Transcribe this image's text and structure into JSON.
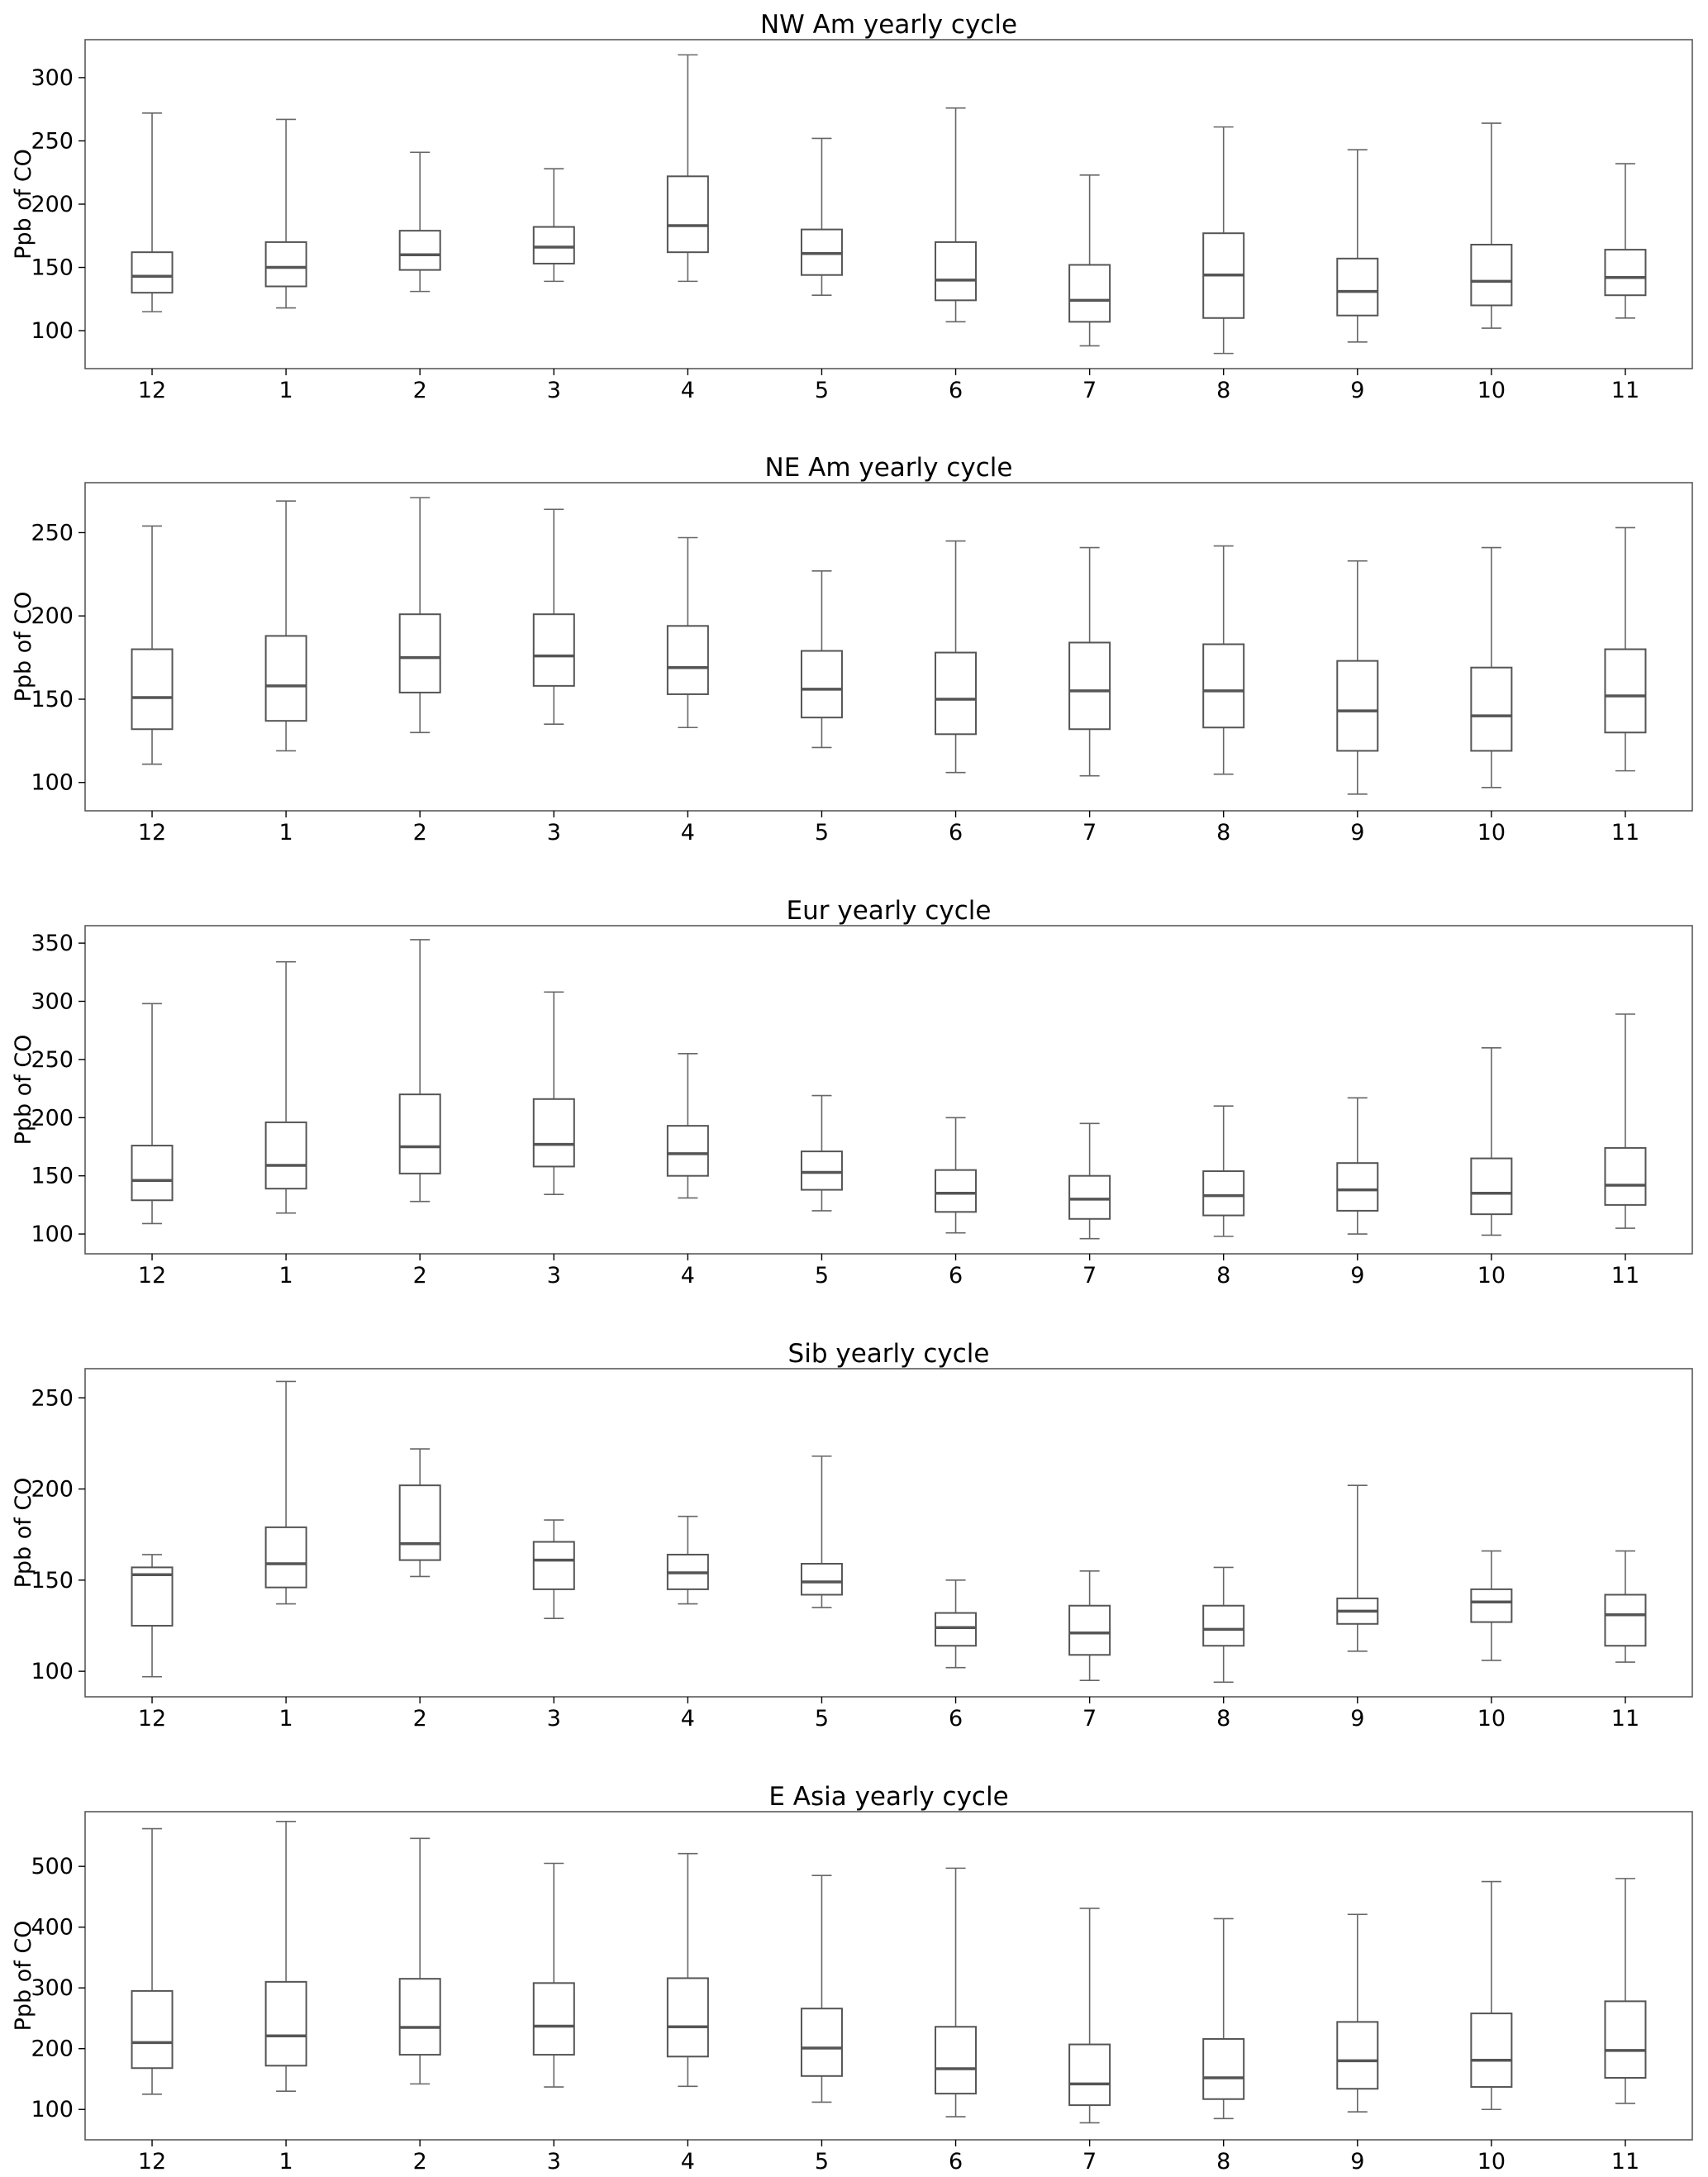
{
  "chart_data": [
    {
      "type": "box",
      "title": "NW Am yearly cycle",
      "ylabel": "Ppb of CO",
      "ylim": [
        70,
        330
      ],
      "yticks": [
        100,
        150,
        200,
        250,
        300
      ],
      "categories": [
        "12",
        "1",
        "2",
        "3",
        "4",
        "5",
        "6",
        "7",
        "8",
        "9",
        "10",
        "11"
      ],
      "boxes": [
        {
          "whislo": 115,
          "q1": 130,
          "med": 143,
          "q3": 162,
          "whishi": 272
        },
        {
          "whislo": 118,
          "q1": 135,
          "med": 150,
          "q3": 170,
          "whishi": 267
        },
        {
          "whislo": 131,
          "q1": 148,
          "med": 160,
          "q3": 179,
          "whishi": 241
        },
        {
          "whislo": 139,
          "q1": 153,
          "med": 166,
          "q3": 182,
          "whishi": 228
        },
        {
          "whislo": 139,
          "q1": 162,
          "med": 183,
          "q3": 222,
          "whishi": 318
        },
        {
          "whislo": 128,
          "q1": 144,
          "med": 161,
          "q3": 180,
          "whishi": 252
        },
        {
          "whislo": 107,
          "q1": 124,
          "med": 140,
          "q3": 170,
          "whishi": 276
        },
        {
          "whislo": 88,
          "q1": 107,
          "med": 124,
          "q3": 152,
          "whishi": 223
        },
        {
          "whislo": 82,
          "q1": 110,
          "med": 144,
          "q3": 177,
          "whishi": 261
        },
        {
          "whislo": 91,
          "q1": 112,
          "med": 131,
          "q3": 157,
          "whishi": 243
        },
        {
          "whislo": 102,
          "q1": 120,
          "med": 139,
          "q3": 168,
          "whishi": 264
        },
        {
          "whislo": 110,
          "q1": 128,
          "med": 142,
          "q3": 164,
          "whishi": 232
        }
      ]
    },
    {
      "type": "box",
      "title": "NE Am yearly cycle",
      "ylabel": "Ppb of CO",
      "ylim": [
        83,
        280
      ],
      "yticks": [
        100,
        150,
        200,
        250
      ],
      "categories": [
        "12",
        "1",
        "2",
        "3",
        "4",
        "5",
        "6",
        "7",
        "8",
        "9",
        "10",
        "11"
      ],
      "boxes": [
        {
          "whislo": 111,
          "q1": 132,
          "med": 151,
          "q3": 180,
          "whishi": 254
        },
        {
          "whislo": 119,
          "q1": 137,
          "med": 158,
          "q3": 188,
          "whishi": 269
        },
        {
          "whislo": 130,
          "q1": 154,
          "med": 175,
          "q3": 201,
          "whishi": 271
        },
        {
          "whislo": 135,
          "q1": 158,
          "med": 176,
          "q3": 201,
          "whishi": 264
        },
        {
          "whislo": 133,
          "q1": 153,
          "med": 169,
          "q3": 194,
          "whishi": 247
        },
        {
          "whislo": 121,
          "q1": 139,
          "med": 156,
          "q3": 179,
          "whishi": 227
        },
        {
          "whislo": 106,
          "q1": 129,
          "med": 150,
          "q3": 178,
          "whishi": 245
        },
        {
          "whislo": 104,
          "q1": 132,
          "med": 155,
          "q3": 184,
          "whishi": 241
        },
        {
          "whislo": 105,
          "q1": 133,
          "med": 155,
          "q3": 183,
          "whishi": 242
        },
        {
          "whislo": 93,
          "q1": 119,
          "med": 143,
          "q3": 173,
          "whishi": 233
        },
        {
          "whislo": 97,
          "q1": 119,
          "med": 140,
          "q3": 169,
          "whishi": 241
        },
        {
          "whislo": 107,
          "q1": 130,
          "med": 152,
          "q3": 180,
          "whishi": 253
        }
      ]
    },
    {
      "type": "box",
      "title": "Eur yearly cycle",
      "ylabel": "Ppb of CO",
      "ylim": [
        83,
        365
      ],
      "yticks": [
        100,
        150,
        200,
        250,
        300,
        350
      ],
      "categories": [
        "12",
        "1",
        "2",
        "3",
        "4",
        "5",
        "6",
        "7",
        "8",
        "9",
        "10",
        "11"
      ],
      "boxes": [
        {
          "whislo": 109,
          "q1": 129,
          "med": 146,
          "q3": 176,
          "whishi": 298
        },
        {
          "whislo": 118,
          "q1": 139,
          "med": 159,
          "q3": 196,
          "whishi": 334
        },
        {
          "whislo": 128,
          "q1": 152,
          "med": 175,
          "q3": 220,
          "whishi": 353
        },
        {
          "whislo": 134,
          "q1": 158,
          "med": 177,
          "q3": 216,
          "whishi": 308
        },
        {
          "whislo": 131,
          "q1": 150,
          "med": 169,
          "q3": 193,
          "whishi": 255
        },
        {
          "whislo": 120,
          "q1": 138,
          "med": 153,
          "q3": 171,
          "whishi": 219
        },
        {
          "whislo": 101,
          "q1": 119,
          "med": 135,
          "q3": 155,
          "whishi": 200
        },
        {
          "whislo": 96,
          "q1": 113,
          "med": 130,
          "q3": 150,
          "whishi": 195
        },
        {
          "whislo": 98,
          "q1": 116,
          "med": 133,
          "q3": 154,
          "whishi": 210
        },
        {
          "whislo": 100,
          "q1": 120,
          "med": 138,
          "q3": 161,
          "whishi": 217
        },
        {
          "whislo": 99,
          "q1": 117,
          "med": 135,
          "q3": 165,
          "whishi": 260
        },
        {
          "whislo": 105,
          "q1": 125,
          "med": 142,
          "q3": 174,
          "whishi": 289
        }
      ]
    },
    {
      "type": "box",
      "title": "Sib yearly cycle",
      "ylabel": "Ppb of CO",
      "ylim": [
        86,
        266
      ],
      "yticks": [
        100,
        150,
        200,
        250
      ],
      "categories": [
        "12",
        "1",
        "2",
        "3",
        "4",
        "5",
        "6",
        "7",
        "8",
        "9",
        "10",
        "11"
      ],
      "boxes": [
        {
          "whislo": 97,
          "q1": 125,
          "med": 153,
          "q3": 157,
          "whishi": 164
        },
        {
          "whislo": 137,
          "q1": 146,
          "med": 159,
          "q3": 179,
          "whishi": 259
        },
        {
          "whislo": 152,
          "q1": 161,
          "med": 170,
          "q3": 202,
          "whishi": 222
        },
        {
          "whislo": 129,
          "q1": 145,
          "med": 161,
          "q3": 171,
          "whishi": 183
        },
        {
          "whislo": 137,
          "q1": 145,
          "med": 154,
          "q3": 164,
          "whishi": 185
        },
        {
          "whislo": 135,
          "q1": 142,
          "med": 149,
          "q3": 159,
          "whishi": 218
        },
        {
          "whislo": 102,
          "q1": 114,
          "med": 124,
          "q3": 132,
          "whishi": 150
        },
        {
          "whislo": 95,
          "q1": 109,
          "med": 121,
          "q3": 136,
          "whishi": 155
        },
        {
          "whislo": 94,
          "q1": 114,
          "med": 123,
          "q3": 136,
          "whishi": 157
        },
        {
          "whislo": 111,
          "q1": 126,
          "med": 133,
          "q3": 140,
          "whishi": 202
        },
        {
          "whislo": 106,
          "q1": 127,
          "med": 138,
          "q3": 145,
          "whishi": 166
        },
        {
          "whislo": 105,
          "q1": 114,
          "med": 131,
          "q3": 142,
          "whishi": 166
        }
      ]
    },
    {
      "type": "box",
      "title": "E Asia yearly cycle",
      "ylabel": "Ppb of CO",
      "ylim": [
        50,
        590
      ],
      "yticks": [
        100,
        200,
        300,
        400,
        500
      ],
      "categories": [
        "12",
        "1",
        "2",
        "3",
        "4",
        "5",
        "6",
        "7",
        "8",
        "9",
        "10",
        "11"
      ],
      "boxes": [
        {
          "whislo": 125,
          "q1": 168,
          "med": 210,
          "q3": 295,
          "whishi": 562
        },
        {
          "whislo": 130,
          "q1": 172,
          "med": 221,
          "q3": 310,
          "whishi": 574
        },
        {
          "whislo": 142,
          "q1": 190,
          "med": 235,
          "q3": 315,
          "whishi": 546
        },
        {
          "whislo": 137,
          "q1": 190,
          "med": 237,
          "q3": 308,
          "whishi": 505
        },
        {
          "whislo": 138,
          "q1": 187,
          "med": 236,
          "q3": 316,
          "whishi": 521
        },
        {
          "whislo": 112,
          "q1": 155,
          "med": 201,
          "q3": 266,
          "whishi": 485
        },
        {
          "whislo": 88,
          "q1": 126,
          "med": 167,
          "q3": 236,
          "whishi": 497
        },
        {
          "whislo": 78,
          "q1": 107,
          "med": 142,
          "q3": 207,
          "whishi": 431
        },
        {
          "whislo": 85,
          "q1": 117,
          "med": 152,
          "q3": 216,
          "whishi": 414
        },
        {
          "whislo": 96,
          "q1": 134,
          "med": 180,
          "q3": 244,
          "whishi": 421
        },
        {
          "whislo": 100,
          "q1": 137,
          "med": 181,
          "q3": 258,
          "whishi": 475
        },
        {
          "whislo": 110,
          "q1": 152,
          "med": 197,
          "q3": 278,
          "whishi": 480
        }
      ]
    }
  ]
}
